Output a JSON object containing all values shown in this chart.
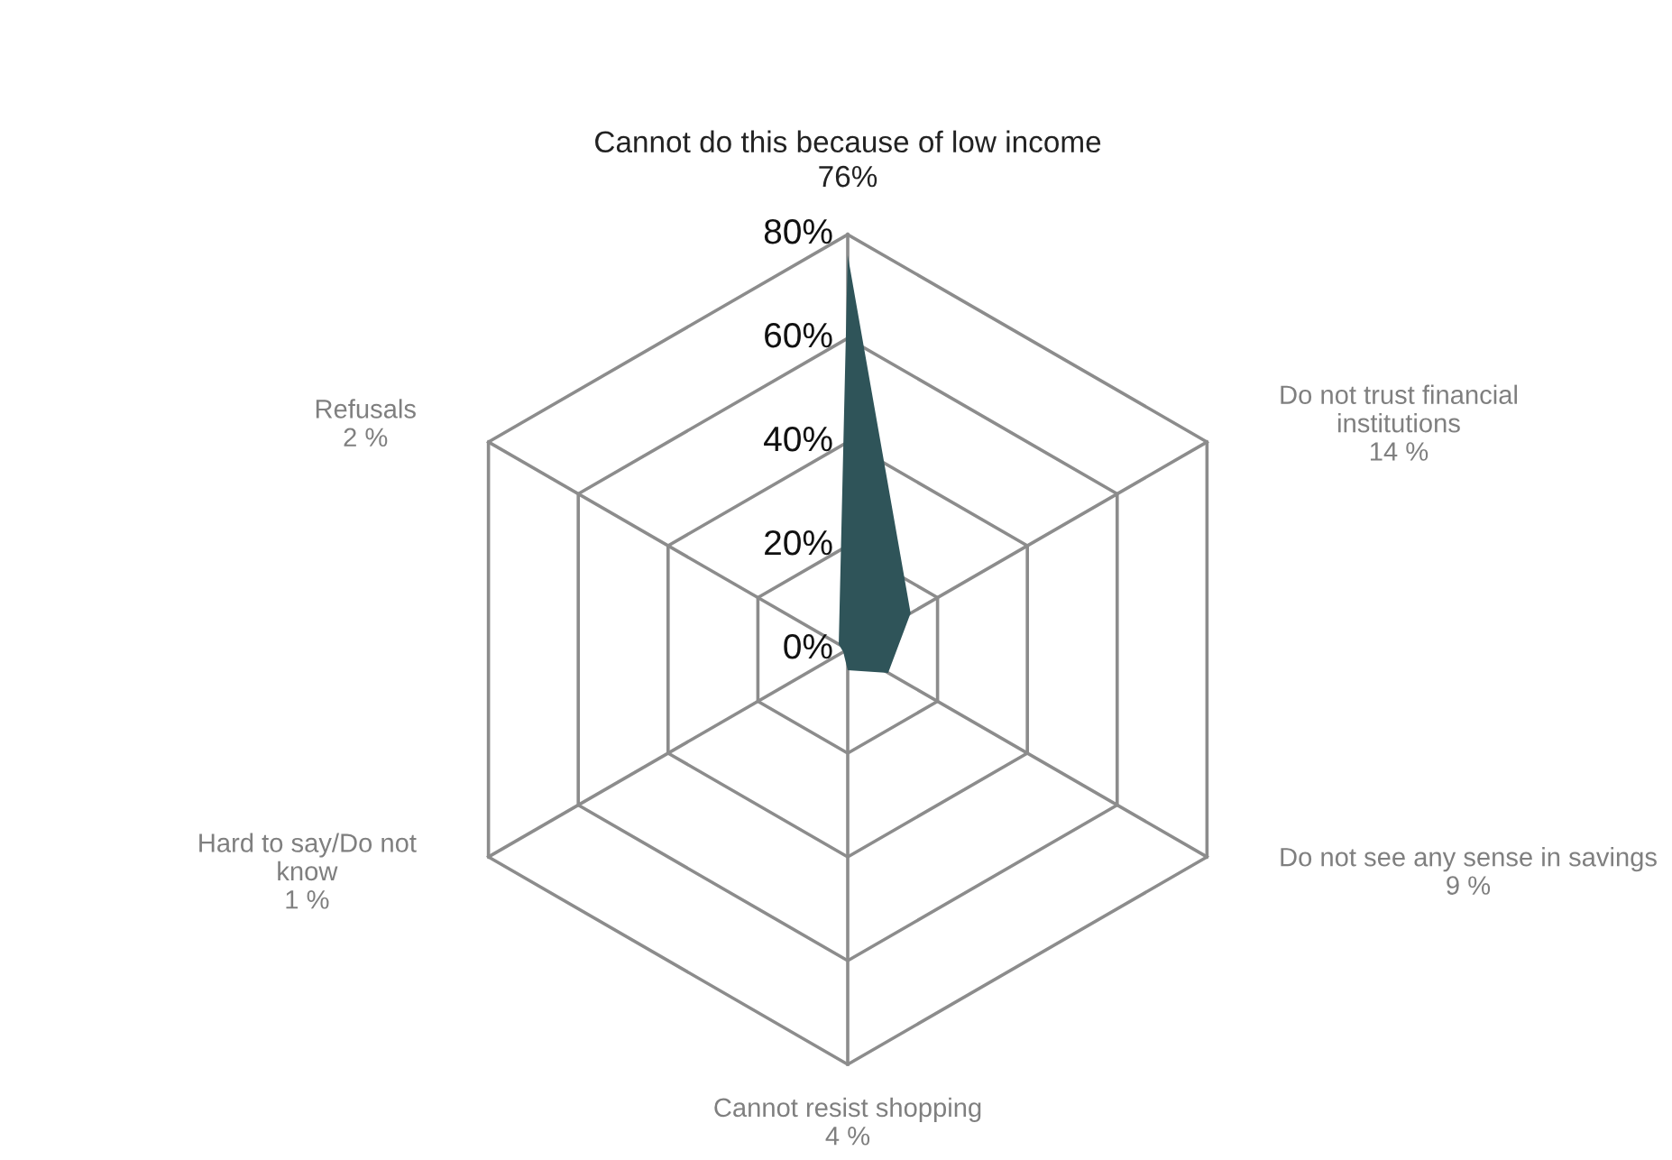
{
  "chart_data": {
    "type": "radar",
    "categories": [
      "Cannot do this because of low income\n76%",
      "Do not trust financial\ninstitutions\n14 %",
      "Do not see any sense in savings\n9 %",
      "Cannot resist shopping\n4 %",
      "Hard to say/Do not\nknow\n1 %",
      "Refusals\n2 %"
    ],
    "series": [
      {
        "color": "#2f5459",
        "values": [
          76,
          14,
          9,
          4,
          1,
          2
        ]
      }
    ],
    "ylim": [
      0,
      80
    ],
    "yticks": [
      {
        "value": 0,
        "label": "0%"
      },
      {
        "value": 20,
        "label": "20%"
      },
      {
        "value": 40,
        "label": "40%"
      },
      {
        "value": 60,
        "label": "60%"
      },
      {
        "value": 80,
        "label": "80%"
      }
    ],
    "grid": true
  }
}
